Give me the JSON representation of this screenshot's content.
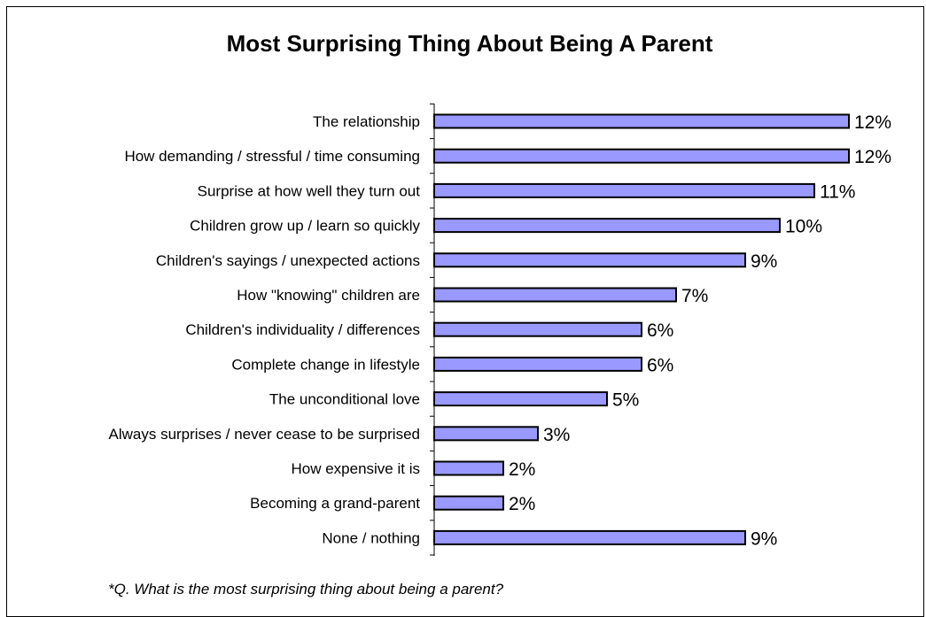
{
  "chart_data": {
    "type": "bar",
    "orientation": "horizontal",
    "title": "Most Surprising Thing About Being A Parent",
    "categories": [
      "The relationship",
      "How demanding / stressful / time consuming",
      "Surprise at how well they turn out",
      "Children grow up / learn so quickly",
      "Children's sayings / unexpected actions",
      "How \"knowing\" children are",
      "Children's individuality / differences",
      "Complete change in lifestyle",
      "The unconditional love",
      "Always surprises / never cease to be surprised",
      "How expensive it is",
      "Becoming a grand-parent",
      "None / nothing"
    ],
    "values": [
      12,
      12,
      11,
      10,
      9,
      7,
      6,
      6,
      5,
      3,
      2,
      2,
      9
    ],
    "value_labels": [
      "12%",
      "12%",
      "11%",
      "10%",
      "9%",
      "7%",
      "6%",
      "6%",
      "5%",
      "3%",
      "2%",
      "2%",
      "9%"
    ],
    "unit": "%",
    "xlim": [
      0,
      12
    ],
    "grid": false,
    "bar_color": "#9999ff",
    "bar_edge_color": "#000000",
    "footnote": "*Q. What is the most surprising thing about being a parent?"
  }
}
